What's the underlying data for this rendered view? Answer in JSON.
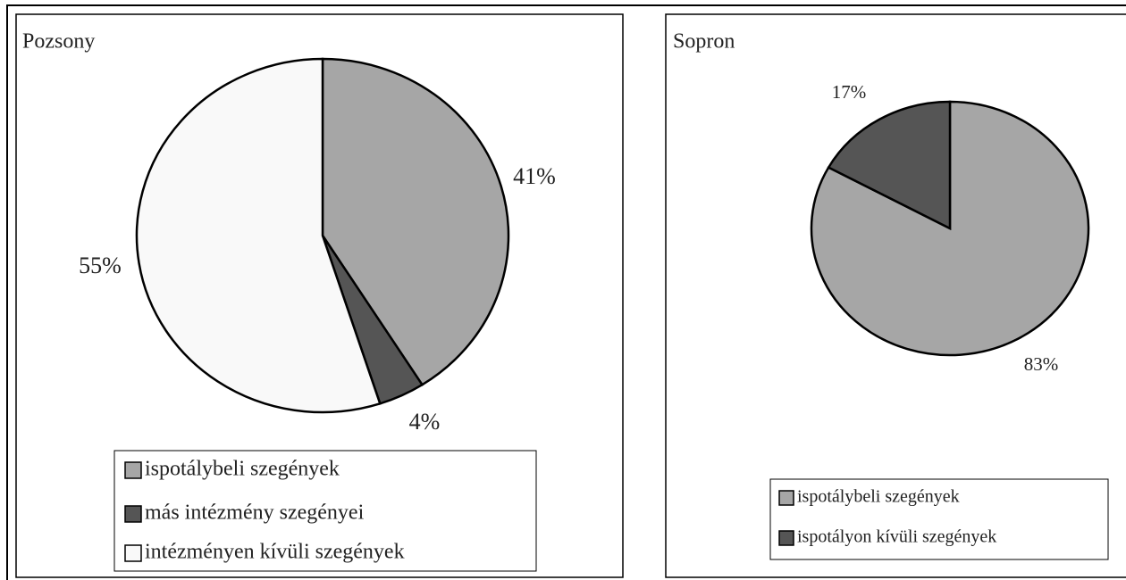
{
  "chart_data": [
    {
      "type": "pie",
      "title": "Pozsony",
      "categories": [
        "ispotálybeli szegények",
        "más intézmény szegényei",
        "intézményen kívüli szegények"
      ],
      "values": [
        41,
        4,
        55
      ],
      "value_labels": [
        "41%",
        "4%",
        "55%"
      ],
      "colors": [
        "#a6a6a6",
        "#555555",
        "#f9f9f9"
      ]
    },
    {
      "type": "pie",
      "title": "Sopron",
      "categories": [
        "ispotálybeli szegények",
        "ispotályon kívüli szegények"
      ],
      "values": [
        83,
        17
      ],
      "value_labels": [
        "83%",
        "17%"
      ],
      "colors": [
        "#a6a6a6",
        "#555555"
      ]
    }
  ]
}
